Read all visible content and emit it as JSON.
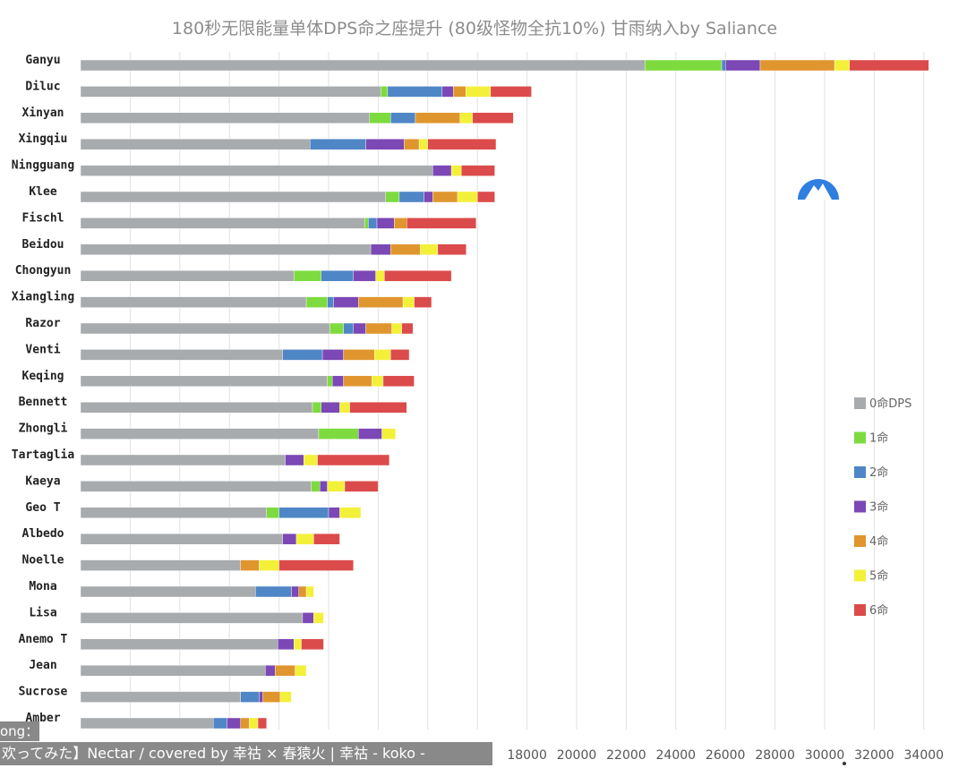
{
  "chart_data": {
    "type": "bar",
    "orientation": "horizontal",
    "stacked": true,
    "title": "180秒无限能量单体DPS命之座提升 (80级怪物全抗10%)    甘雨纳入by Saliance",
    "categories": [
      "Ganyu",
      "Diluc",
      "Xinyan",
      "Xingqiu",
      "Ningguang",
      "Klee",
      "Fischl",
      "Beidou",
      "Chongyun",
      "Xiangling",
      "Razor",
      "Venti",
      "Keqing",
      "Bennett",
      "Zhongli",
      "Tartaglia",
      "Kaeya",
      "Geo T",
      "Albedo",
      "Noelle",
      "Mona",
      "Lisa",
      "Anemo T",
      "Jean",
      "Sucrose",
      "Amber"
    ],
    "series": [
      {
        "name": "0命DPS",
        "color": "#a8abae",
        "values": [
          22750,
          12100,
          11650,
          9250,
          14200,
          12300,
          11450,
          11700,
          8600,
          9100,
          10050,
          8150,
          9950,
          9350,
          9600,
          8250,
          9300,
          7500,
          8150,
          6450,
          7050,
          8950,
          7950,
          7450,
          6450,
          5350
        ]
      },
      {
        "name": "1命",
        "color": "#7ddb3f",
        "values": [
          3100,
          280,
          850,
          0,
          0,
          550,
          150,
          0,
          1100,
          850,
          550,
          0,
          200,
          350,
          1600,
          0,
          350,
          500,
          0,
          0,
          0,
          0,
          0,
          0,
          0,
          0
        ]
      },
      {
        "name": "2命",
        "color": "#4f86c6",
        "values": [
          150,
          2200,
          1000,
          2250,
          0,
          1000,
          350,
          0,
          1300,
          250,
          400,
          1600,
          0,
          0,
          0,
          0,
          0,
          2000,
          0,
          0,
          1450,
          0,
          0,
          0,
          750,
          550
        ]
      },
      {
        "name": "3命",
        "color": "#7b48b5",
        "values": [
          1400,
          450,
          0,
          1550,
          750,
          350,
          700,
          800,
          900,
          1000,
          500,
          850,
          450,
          750,
          950,
          750,
          300,
          450,
          550,
          0,
          300,
          450,
          650,
          400,
          150,
          550
        ]
      },
      {
        "name": "4命",
        "color": "#e0962e",
        "values": [
          3000,
          500,
          1800,
          600,
          0,
          1000,
          500,
          1200,
          0,
          1800,
          1050,
          1250,
          1150,
          0,
          0,
          0,
          0,
          0,
          0,
          750,
          300,
          0,
          0,
          800,
          700,
          350
        ]
      },
      {
        "name": "5命",
        "color": "#f3f03a",
        "values": [
          600,
          1000,
          500,
          350,
          400,
          800,
          0,
          700,
          350,
          450,
          400,
          650,
          450,
          400,
          550,
          550,
          700,
          850,
          700,
          800,
          300,
          400,
          300,
          450,
          450,
          350
        ]
      },
      {
        "name": "6命",
        "color": "#dc4b4b",
        "values": [
          3200,
          1650,
          1650,
          2750,
          1350,
          700,
          2800,
          1150,
          2700,
          700,
          450,
          750,
          1250,
          2300,
          0,
          2900,
          1350,
          0,
          1050,
          3000,
          0,
          0,
          900,
          0,
          0,
          350
        ]
      }
    ],
    "xticks": [
      "18000",
      "20000",
      "22000",
      "24000",
      "26000",
      "28000",
      "30000",
      "32000",
      "34000"
    ],
    "xlim": [
      0,
      34500
    ],
    "grid": true,
    "legend_position": "right"
  },
  "overlay": {
    "song_label": "ong：",
    "subtitle": "欢ってみた】Nectar / covered by 幸祜 × 春猿火 | 幸祜 - koko -"
  }
}
